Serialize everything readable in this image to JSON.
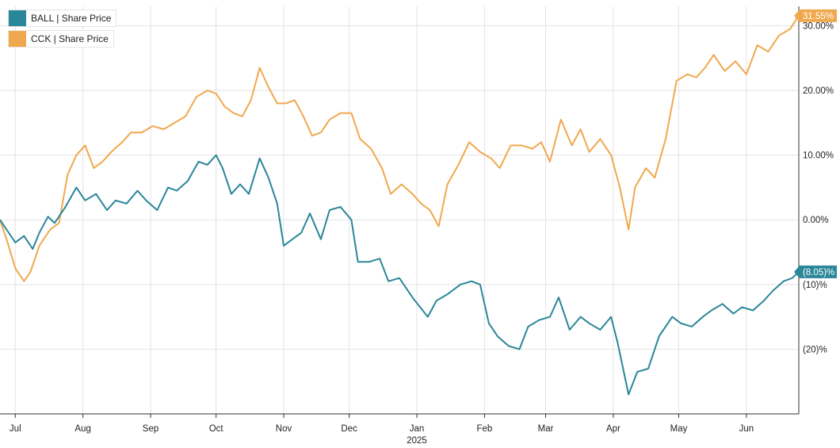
{
  "legend": [
    {
      "label": "BALL | Share Price",
      "color": "#2a8699"
    },
    {
      "label": "CCK | Share Price",
      "color": "#f0a84e"
    }
  ],
  "badges": {
    "ball": "(8.05)%",
    "cck": "31.55%"
  },
  "chart_data": {
    "type": "line",
    "x_tick_labels": [
      "Jul",
      "Aug",
      "Sep",
      "Oct",
      "Nov",
      "Dec",
      "Jan",
      "Feb",
      "Mar",
      "Apr",
      "May",
      "Jun"
    ],
    "x_year_label": "2025",
    "y_tick_labels": [
      "30.00%",
      "20.00%",
      "10.00%",
      "0.00%",
      "(10)%",
      "(20)%"
    ],
    "y_tick_values": [
      30,
      20,
      10,
      0,
      -10,
      -20
    ],
    "ylim": [
      -30,
      33
    ],
    "grid": true,
    "legend_position": "top-left",
    "x_start": "2024-06-24",
    "x_end": "2025-06-25",
    "series": [
      {
        "name": "BALL | Share Price",
        "color": "#2a8699",
        "points": [
          [
            "2024-06-24",
            0.0
          ],
          [
            "2024-06-27",
            -1.5
          ],
          [
            "2024-07-01",
            -3.5
          ],
          [
            "2024-07-05",
            -2.5
          ],
          [
            "2024-07-09",
            -4.5
          ],
          [
            "2024-07-12",
            -2.0
          ],
          [
            "2024-07-16",
            0.5
          ],
          [
            "2024-07-19",
            -0.5
          ],
          [
            "2024-07-24",
            2.0
          ],
          [
            "2024-07-29",
            5.0
          ],
          [
            "2024-08-02",
            3.0
          ],
          [
            "2024-08-07",
            4.0
          ],
          [
            "2024-08-12",
            1.5
          ],
          [
            "2024-08-16",
            3.0
          ],
          [
            "2024-08-21",
            2.5
          ],
          [
            "2024-08-26",
            4.5
          ],
          [
            "2024-08-30",
            3.0
          ],
          [
            "2024-09-04",
            1.5
          ],
          [
            "2024-09-09",
            5.0
          ],
          [
            "2024-09-13",
            4.5
          ],
          [
            "2024-09-18",
            6.0
          ],
          [
            "2024-09-23",
            9.0
          ],
          [
            "2024-09-27",
            8.5
          ],
          [
            "2024-10-01",
            10.0
          ],
          [
            "2024-10-04",
            8.0
          ],
          [
            "2024-10-08",
            4.0
          ],
          [
            "2024-10-12",
            5.5
          ],
          [
            "2024-10-16",
            4.0
          ],
          [
            "2024-10-21",
            9.5
          ],
          [
            "2024-10-25",
            6.5
          ],
          [
            "2024-10-29",
            2.5
          ],
          [
            "2024-11-01",
            -4.0
          ],
          [
            "2024-11-05",
            -3.0
          ],
          [
            "2024-11-09",
            -2.0
          ],
          [
            "2024-11-13",
            1.0
          ],
          [
            "2024-11-18",
            -3.0
          ],
          [
            "2024-11-22",
            1.5
          ],
          [
            "2024-11-27",
            2.0
          ],
          [
            "2024-12-02",
            0.0
          ],
          [
            "2024-12-05",
            -6.5
          ],
          [
            "2024-12-10",
            -6.5
          ],
          [
            "2024-12-15",
            -6.0
          ],
          [
            "2024-12-19",
            -9.5
          ],
          [
            "2024-12-24",
            -9.0
          ],
          [
            "2024-12-30",
            -12.0
          ],
          [
            "2025-01-06",
            -15.0
          ],
          [
            "2025-01-10",
            -12.5
          ],
          [
            "2025-01-15",
            -11.5
          ],
          [
            "2025-01-21",
            -10.0
          ],
          [
            "2025-01-26",
            -9.5
          ],
          [
            "2025-01-30",
            -10.0
          ],
          [
            "2025-02-03",
            -16.0
          ],
          [
            "2025-02-07",
            -18.0
          ],
          [
            "2025-02-12",
            -19.5
          ],
          [
            "2025-02-17",
            -20.0
          ],
          [
            "2025-02-21",
            -16.5
          ],
          [
            "2025-02-26",
            -15.5
          ],
          [
            "2025-03-03",
            -15.0
          ],
          [
            "2025-03-07",
            -12.0
          ],
          [
            "2025-03-12",
            -17.0
          ],
          [
            "2025-03-17",
            -15.0
          ],
          [
            "2025-03-21",
            -16.0
          ],
          [
            "2025-03-26",
            -17.0
          ],
          [
            "2025-03-31",
            -15.0
          ],
          [
            "2025-04-03",
            -19.0
          ],
          [
            "2025-04-08",
            -27.0
          ],
          [
            "2025-04-12",
            -23.5
          ],
          [
            "2025-04-17",
            -23.0
          ],
          [
            "2025-04-22",
            -18.0
          ],
          [
            "2025-04-28",
            -15.0
          ],
          [
            "2025-05-02",
            -16.0
          ],
          [
            "2025-05-07",
            -16.5
          ],
          [
            "2025-05-12",
            -15.0
          ],
          [
            "2025-05-16",
            -14.0
          ],
          [
            "2025-05-21",
            -13.0
          ],
          [
            "2025-05-26",
            -14.5
          ],
          [
            "2025-05-30",
            -13.5
          ],
          [
            "2025-06-04",
            -14.0
          ],
          [
            "2025-06-09",
            -12.5
          ],
          [
            "2025-06-13",
            -11.0
          ],
          [
            "2025-06-18",
            -9.5
          ],
          [
            "2025-06-22",
            -9.0
          ],
          [
            "2025-06-25",
            -8.05
          ]
        ]
      },
      {
        "name": "CCK | Share Price",
        "color": "#f0a84e",
        "points": [
          [
            "2024-06-24",
            0.0
          ],
          [
            "2024-06-27",
            -3.0
          ],
          [
            "2024-07-01",
            -7.5
          ],
          [
            "2024-07-05",
            -9.5
          ],
          [
            "2024-07-08",
            -8.0
          ],
          [
            "2024-07-12",
            -4.0
          ],
          [
            "2024-07-17",
            -1.5
          ],
          [
            "2024-07-21",
            -0.5
          ],
          [
            "2024-07-25",
            7.0
          ],
          [
            "2024-07-29",
            10.0
          ],
          [
            "2024-08-02",
            11.5
          ],
          [
            "2024-08-06",
            8.0
          ],
          [
            "2024-08-10",
            9.0
          ],
          [
            "2024-08-14",
            10.5
          ],
          [
            "2024-08-19",
            12.0
          ],
          [
            "2024-08-23",
            13.5
          ],
          [
            "2024-08-28",
            13.5
          ],
          [
            "2024-09-02",
            14.5
          ],
          [
            "2024-09-07",
            14.0
          ],
          [
            "2024-09-12",
            15.0
          ],
          [
            "2024-09-17",
            16.0
          ],
          [
            "2024-09-22",
            19.0
          ],
          [
            "2024-09-27",
            20.0
          ],
          [
            "2024-10-01",
            19.5
          ],
          [
            "2024-10-05",
            17.5
          ],
          [
            "2024-10-09",
            16.5
          ],
          [
            "2024-10-13",
            16.0
          ],
          [
            "2024-10-17",
            18.5
          ],
          [
            "2024-10-21",
            23.5
          ],
          [
            "2024-10-25",
            20.5
          ],
          [
            "2024-10-29",
            18.0
          ],
          [
            "2024-11-02",
            18.0
          ],
          [
            "2024-11-06",
            18.5
          ],
          [
            "2024-11-10",
            16.0
          ],
          [
            "2024-11-14",
            13.0
          ],
          [
            "2024-11-18",
            13.5
          ],
          [
            "2024-11-22",
            15.5
          ],
          [
            "2024-11-27",
            16.5
          ],
          [
            "2024-12-02",
            16.5
          ],
          [
            "2024-12-06",
            12.5
          ],
          [
            "2024-12-11",
            11.0
          ],
          [
            "2024-12-16",
            8.0
          ],
          [
            "2024-12-20",
            4.0
          ],
          [
            "2024-12-25",
            5.5
          ],
          [
            "2024-12-30",
            4.0
          ],
          [
            "2025-01-03",
            2.5
          ],
          [
            "2025-01-07",
            1.5
          ],
          [
            "2025-01-11",
            -1.0
          ],
          [
            "2025-01-15",
            5.5
          ],
          [
            "2025-01-20",
            8.5
          ],
          [
            "2025-01-25",
            12.0
          ],
          [
            "2025-01-30",
            10.5
          ],
          [
            "2025-02-04",
            9.5
          ],
          [
            "2025-02-08",
            8.0
          ],
          [
            "2025-02-13",
            11.5
          ],
          [
            "2025-02-18",
            11.5
          ],
          [
            "2025-02-23",
            11.0
          ],
          [
            "2025-02-27",
            12.0
          ],
          [
            "2025-03-03",
            9.0
          ],
          [
            "2025-03-08",
            15.5
          ],
          [
            "2025-03-13",
            11.5
          ],
          [
            "2025-03-17",
            14.0
          ],
          [
            "2025-03-21",
            10.5
          ],
          [
            "2025-03-26",
            12.5
          ],
          [
            "2025-03-31",
            10.0
          ],
          [
            "2025-04-04",
            5.0
          ],
          [
            "2025-04-08",
            -1.5
          ],
          [
            "2025-04-11",
            5.0
          ],
          [
            "2025-04-16",
            8.0
          ],
          [
            "2025-04-20",
            6.5
          ],
          [
            "2025-04-25",
            12.5
          ],
          [
            "2025-04-30",
            21.5
          ],
          [
            "2025-05-05",
            22.5
          ],
          [
            "2025-05-09",
            22.0
          ],
          [
            "2025-05-13",
            23.5
          ],
          [
            "2025-05-17",
            25.5
          ],
          [
            "2025-05-22",
            23.0
          ],
          [
            "2025-05-27",
            24.5
          ],
          [
            "2025-06-01",
            22.5
          ],
          [
            "2025-06-06",
            27.0
          ],
          [
            "2025-06-11",
            26.0
          ],
          [
            "2025-06-16",
            28.5
          ],
          [
            "2025-06-21",
            29.5
          ],
          [
            "2025-06-25",
            31.55
          ]
        ]
      }
    ]
  }
}
